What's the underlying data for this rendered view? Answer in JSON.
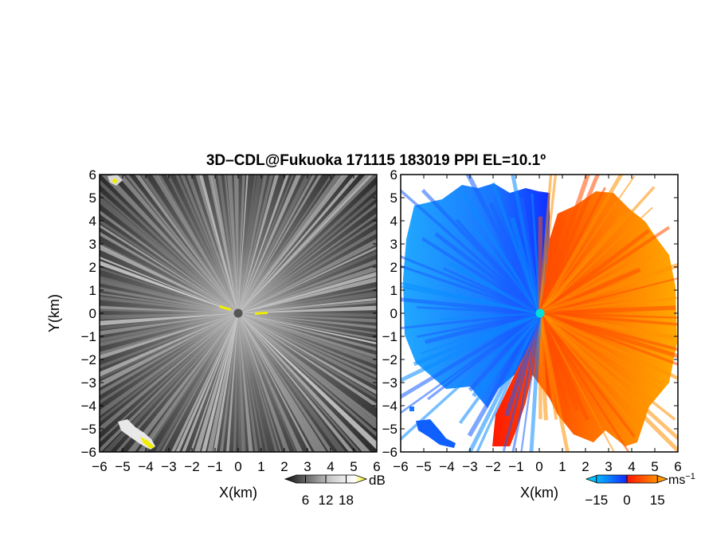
{
  "chart_data": [
    {
      "type": "heatmap",
      "title": "3D–CDL@Fukuoka 171115 183019 PPI EL=10.1º",
      "xlabel": "X(km)",
      "ylabel": "Y(km)",
      "xlim": [
        -6,
        6
      ],
      "ylim": [
        -6,
        6
      ],
      "xticks": [
        "−6",
        "−5",
        "−4",
        "−3",
        "−2",
        "−1",
        "0",
        "1",
        "2",
        "3",
        "4",
        "5",
        "6"
      ],
      "yticks": [
        "−6",
        "−5",
        "−4",
        "−3",
        "−2",
        "−1",
        "0",
        "1",
        "2",
        "3",
        "4",
        "5",
        "6"
      ],
      "colorbar": {
        "unit": "dB",
        "ticks": [
          "6",
          "12",
          "18"
        ],
        "range": [
          0,
          24
        ],
        "colors": [
          "#000000",
          "#ffffff",
          "#f4f000"
        ]
      }
    },
    {
      "type": "heatmap",
      "xlabel": "X(km)",
      "ylabel": "",
      "xlim": [
        -6,
        6
      ],
      "ylim": [
        -6,
        6
      ],
      "xticks": [
        "−6",
        "−5",
        "−4",
        "−3",
        "−2",
        "−1",
        "0",
        "1",
        "2",
        "3",
        "4",
        "5",
        "6"
      ],
      "yticks": [
        "−6",
        "−5",
        "−4",
        "−3",
        "−2",
        "−1",
        "0",
        "1",
        "2",
        "3",
        "4",
        "5",
        "6"
      ],
      "colorbar": {
        "unit": "ms",
        "unit_exp": "−1",
        "ticks": [
          "−15",
          "0",
          "15"
        ],
        "range": [
          -20,
          20
        ],
        "colors": [
          "#00e0ff",
          "#0a8cff",
          "#1030ff",
          "#ff1a00",
          "#ff7800",
          "#ffb000"
        ]
      }
    }
  ]
}
